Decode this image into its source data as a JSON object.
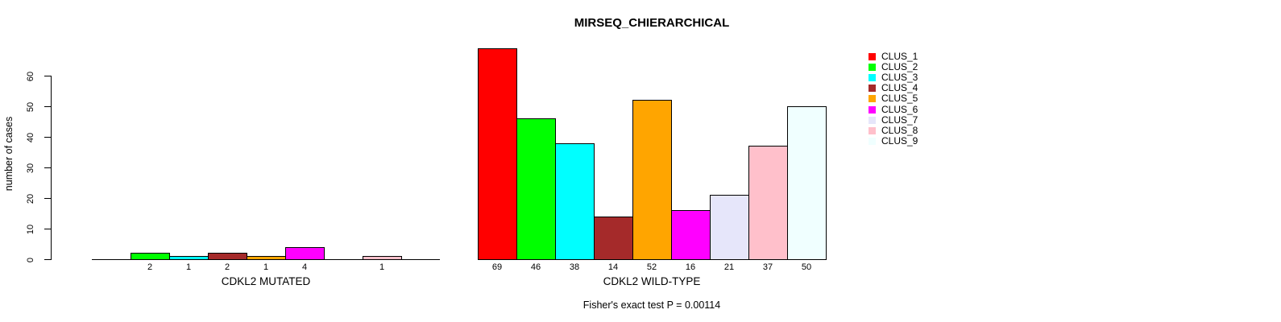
{
  "chart_data": {
    "type": "bar",
    "title": "MIRSEQ_CHIERARCHICAL",
    "ylabel": "number of cases",
    "yticks": [
      0,
      10,
      20,
      30,
      40,
      50,
      60
    ],
    "ylim": [
      0,
      69
    ],
    "grid": false,
    "legend_position": "right",
    "series_labels": [
      "CLUS_1",
      "CLUS_2",
      "CLUS_3",
      "CLUS_4",
      "CLUS_5",
      "CLUS_6",
      "CLUS_7",
      "CLUS_8",
      "CLUS_9"
    ],
    "colors": [
      "#FF0000",
      "#00FF00",
      "#00FFFF",
      "#A52A2A",
      "#FFA500",
      "#FF00FF",
      "#E6E6FA",
      "#FFC0CB",
      "#F0FFFF"
    ],
    "panels": [
      {
        "xlabel": "CDKL2 MUTATED",
        "values": [
          0,
          2,
          1,
          2,
          1,
          4,
          0,
          1,
          0
        ]
      },
      {
        "xlabel": "CDKL2 WILD-TYPE",
        "values": [
          69,
          46,
          38,
          14,
          52,
          16,
          21,
          37,
          50
        ]
      }
    ],
    "annotation": "Fisher's exact test P = 0.00114"
  }
}
